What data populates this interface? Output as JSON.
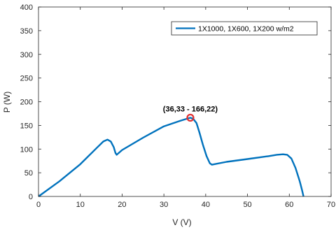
{
  "chart_data": {
    "type": "line",
    "xlabel": "V (V)",
    "ylabel": "P (W)",
    "xlim": [
      0,
      70
    ],
    "ylim": [
      0,
      400
    ],
    "xticks": [
      0,
      10,
      20,
      30,
      40,
      50,
      60,
      70
    ],
    "yticks": [
      0,
      50,
      100,
      150,
      200,
      250,
      300,
      350,
      400
    ],
    "grid": false,
    "legend_position": "top-right",
    "series": [
      {
        "name": "1X1000, 1X600, 1X200 w/m2",
        "color": "#0072BD",
        "x": [
          0,
          5,
          10,
          14,
          15.5,
          16.5,
          17.3,
          18,
          18.4,
          18.7,
          20,
          25,
          30,
          34,
          36.33,
          37,
          37.8,
          38.5,
          39.3,
          40.2,
          41,
          41.5,
          45,
          50,
          55,
          57,
          58.5,
          59.5,
          60.5,
          61.5,
          62.5,
          63,
          63.4
        ],
        "y": [
          0,
          32,
          68,
          103,
          116,
          120,
          116,
          104,
          92,
          88,
          98,
          124,
          148,
          160,
          166.22,
          164,
          155,
          135,
          110,
          85,
          70,
          67,
          73,
          79,
          85,
          88,
          89,
          88,
          80,
          60,
          32,
          15,
          0
        ]
      }
    ],
    "marker": {
      "x": 36.33,
      "y": 166.22,
      "color": "#e03030"
    },
    "annotation": {
      "text": "(36,33 - 166,22)",
      "x": 36.33,
      "y": 166.22
    }
  }
}
